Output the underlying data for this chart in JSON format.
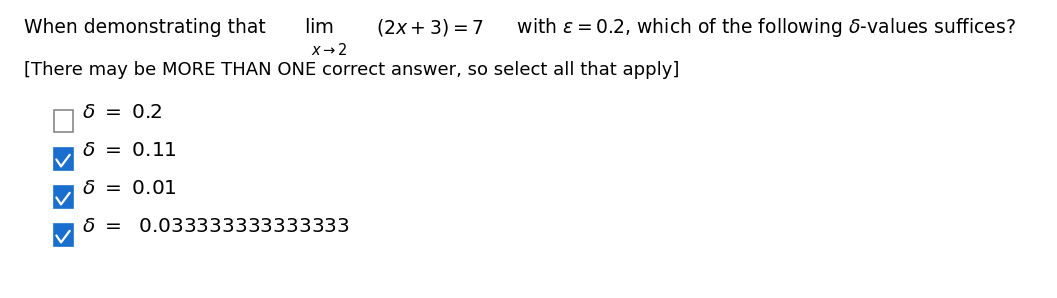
{
  "title_parts": [
    "When demonstrating that ",
    "lim",
    "x→2",
    "(2x + 3) = 7",
    " with ε = 0.2, which of the following δ-values suffices?"
  ],
  "note": "[There may be MORE THAN ONE correct answer, so select all that apply]",
  "options": [
    {
      "label": "δ = 0.2",
      "checked": false
    },
    {
      "label": "δ = 0.11",
      "checked": true
    },
    {
      "label": "δ = 0.01",
      "checked": true
    },
    {
      "label": "δ =  0.033333333333333",
      "checked": true
    }
  ],
  "bg_color": "#ffffff",
  "text_color": "#000000",
  "check_color": "#1a6fce",
  "check_border": "#1a6fce",
  "uncheck_border": "#888888",
  "math_color": "#1a1a1a",
  "font_size_title": 13.5,
  "font_size_note": 13.0,
  "font_size_option": 14.5
}
